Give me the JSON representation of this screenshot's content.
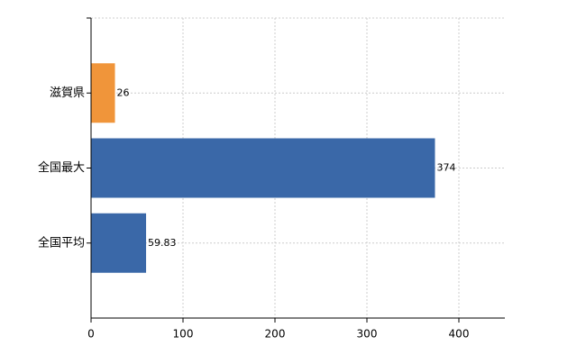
{
  "chart_data": {
    "type": "hbar",
    "categories": [
      "滋賀県",
      "全国最大",
      "全国平均"
    ],
    "values": [
      26,
      374,
      59.83
    ],
    "colors": [
      "#f0953a",
      "#3a68a8",
      "#3a68a8"
    ],
    "xlim": [
      0,
      450
    ],
    "xticks": [
      0,
      100,
      200,
      300,
      400
    ],
    "grid": true
  }
}
